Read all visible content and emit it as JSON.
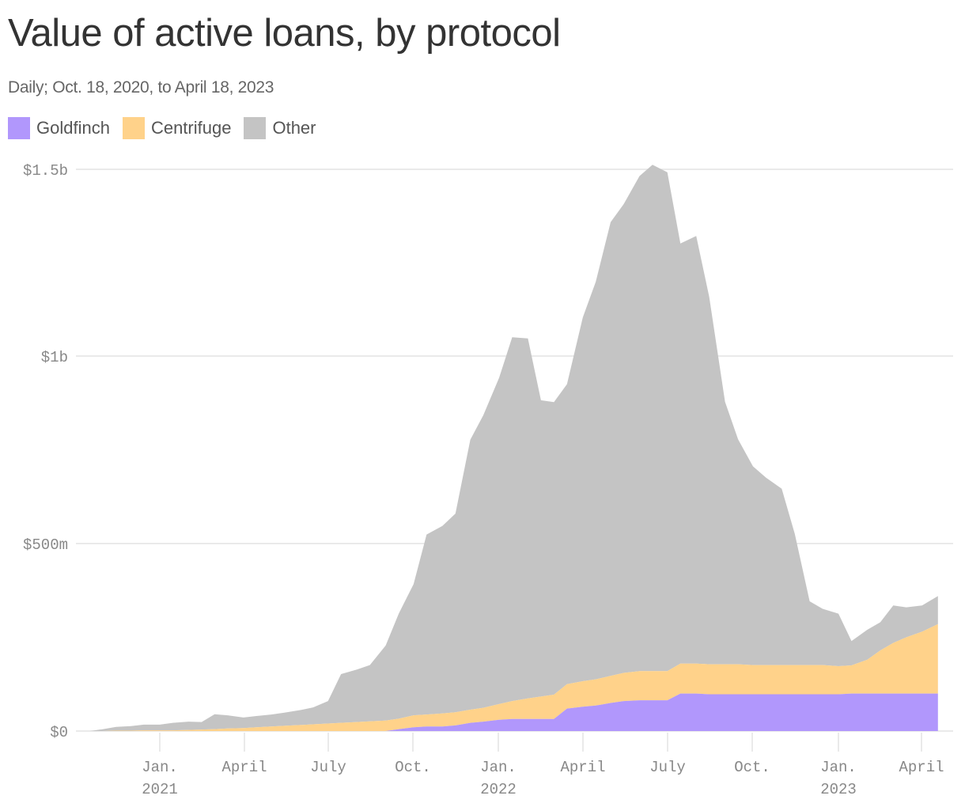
{
  "title": "Value of active loans, by protocol",
  "subtitle": "Daily; Oct. 18, 2020, to April 18, 2023",
  "legend": [
    {
      "label": "Goldfinch",
      "color": "#b197fc"
    },
    {
      "label": "Centrifuge",
      "color": "#ffd28a"
    },
    {
      "label": "Other",
      "color": "#c4c4c4"
    }
  ],
  "y_axis": {
    "ticks": [
      {
        "label": "$1.5b",
        "value": 1500
      },
      {
        "label": "$1b",
        "value": 1000
      },
      {
        "label": "$500m",
        "value": 500
      },
      {
        "label": "$0",
        "value": 0
      }
    ]
  },
  "x_axis": {
    "ticks": [
      {
        "line1": "Jan.",
        "line2": "2021",
        "date": "2021-01-01"
      },
      {
        "line1": "April",
        "line2": "",
        "date": "2021-04-01"
      },
      {
        "line1": "July",
        "line2": "",
        "date": "2021-07-01"
      },
      {
        "line1": "Oct.",
        "line2": "",
        "date": "2021-10-01"
      },
      {
        "line1": "Jan.",
        "line2": "2022",
        "date": "2022-01-01"
      },
      {
        "line1": "April",
        "line2": "",
        "date": "2022-04-01"
      },
      {
        "line1": "July",
        "line2": "",
        "date": "2022-07-01"
      },
      {
        "line1": "Oct.",
        "line2": "",
        "date": "2022-10-01"
      },
      {
        "line1": "Jan.",
        "line2": "2023",
        "date": "2023-01-01"
      },
      {
        "line1": "April",
        "line2": "",
        "date": "2023-04-01"
      }
    ]
  },
  "chart_data": {
    "type": "area",
    "stacked": true,
    "title": "Value of active loans, by protocol",
    "subtitle": "Daily; Oct. 18, 2020, to April 18, 2023",
    "xlabel": "",
    "ylabel": "",
    "unit": "USD millions",
    "ylim": [
      0,
      1500
    ],
    "grid": true,
    "legend_position": "top-left",
    "x": [
      "2020-10-18",
      "2020-11-01",
      "2020-11-15",
      "2020-12-01",
      "2020-12-15",
      "2021-01-01",
      "2021-01-15",
      "2021-02-01",
      "2021-02-15",
      "2021-03-01",
      "2021-03-15",
      "2021-04-01",
      "2021-04-15",
      "2021-05-01",
      "2021-05-15",
      "2021-06-01",
      "2021-06-15",
      "2021-07-01",
      "2021-07-15",
      "2021-08-01",
      "2021-08-15",
      "2021-09-01",
      "2021-09-15",
      "2021-10-01",
      "2021-10-15",
      "2021-11-01",
      "2021-11-15",
      "2021-12-01",
      "2021-12-15",
      "2022-01-01",
      "2022-01-15",
      "2022-02-01",
      "2022-02-15",
      "2022-03-01",
      "2022-03-15",
      "2022-04-01",
      "2022-04-15",
      "2022-05-01",
      "2022-05-15",
      "2022-06-01",
      "2022-06-15",
      "2022-07-01",
      "2022-07-15",
      "2022-08-01",
      "2022-08-15",
      "2022-09-01",
      "2022-09-15",
      "2022-10-01",
      "2022-10-15",
      "2022-11-01",
      "2022-11-15",
      "2022-12-01",
      "2022-12-15",
      "2023-01-01",
      "2023-01-15",
      "2023-02-01",
      "2023-02-15",
      "2023-03-01",
      "2023-03-15",
      "2023-04-01",
      "2023-04-18"
    ],
    "series": [
      {
        "name": "Goldfinch",
        "color": "#b197fc",
        "values": [
          0,
          0,
          0,
          0,
          0,
          0,
          0,
          0,
          0,
          0,
          0,
          0,
          0,
          0,
          0,
          0,
          0,
          0,
          0,
          0,
          0,
          0,
          5,
          10,
          12,
          12,
          15,
          22,
          25,
          30,
          32,
          32,
          32,
          32,
          60,
          65,
          68,
          75,
          80,
          82,
          82,
          82,
          100,
          100,
          98,
          98,
          98,
          98,
          98,
          98,
          98,
          98,
          98,
          98,
          100,
          100,
          100,
          100,
          100,
          100,
          100
        ]
      },
      {
        "name": "Centrifuge",
        "color": "#ffd28a",
        "values": [
          0,
          0,
          1,
          1,
          2,
          2,
          2,
          3,
          4,
          5,
          7,
          8,
          10,
          12,
          14,
          16,
          18,
          20,
          22,
          24,
          26,
          28,
          28,
          32,
          32,
          35,
          35,
          35,
          37,
          42,
          48,
          55,
          60,
          65,
          65,
          68,
          70,
          72,
          75,
          78,
          78,
          78,
          80,
          80,
          80,
          80,
          80,
          78,
          78,
          78,
          78,
          78,
          78,
          75,
          75,
          90,
          115,
          135,
          150,
          165,
          185
        ]
      },
      {
        "name": "Other",
        "color": "#c4c4c4",
        "values": [
          0,
          5,
          10,
          12,
          15,
          15,
          20,
          22,
          20,
          40,
          35,
          28,
          30,
          32,
          35,
          40,
          45,
          60,
          130,
          140,
          150,
          200,
          280,
          350,
          480,
          500,
          530,
          720,
          780,
          870,
          970,
          960,
          790,
          780,
          800,
          970,
          1060,
          1210,
          1250,
          1320,
          1350,
          1330,
          1120,
          1140,
          980,
          700,
          600,
          530,
          500,
          470,
          350,
          170,
          150,
          140,
          65,
          80,
          75,
          100,
          80,
          70,
          75
        ]
      }
    ]
  }
}
